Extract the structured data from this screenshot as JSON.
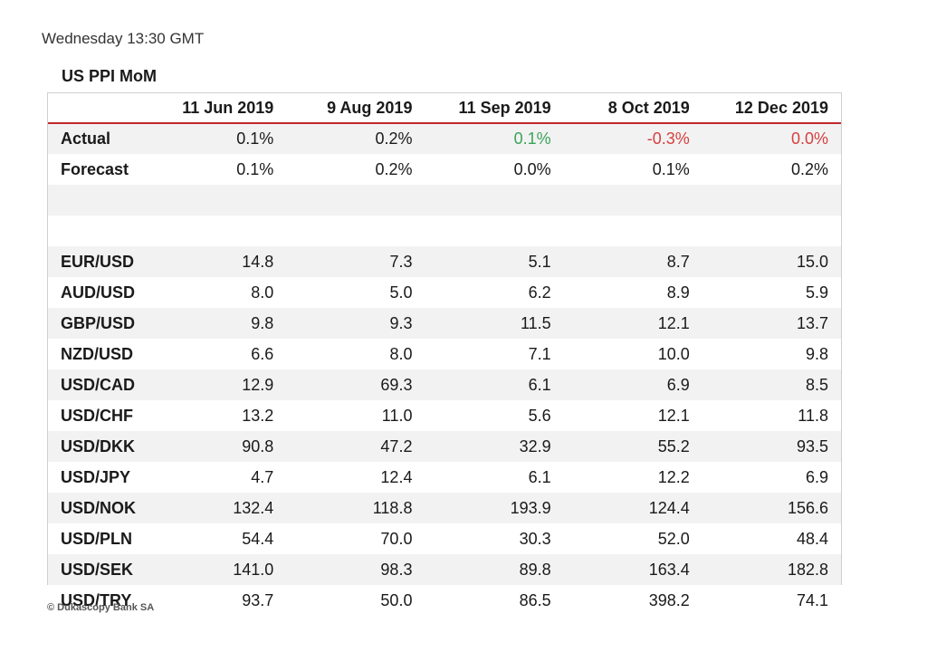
{
  "timestamp": "Wednesday 13:30 GMT",
  "table_title": "US PPI MoM",
  "columns": [
    "11 Jun 2019",
    "9 Aug 2019",
    "11 Sep 2019",
    "8 Oct 2019",
    "12 Dec 2019"
  ],
  "rows": [
    {
      "label": "Actual",
      "values": [
        "0.1%",
        "0.2%",
        "0.1%",
        "-0.3%",
        "0.0%"
      ],
      "colors": [
        "",
        "",
        "pos",
        "neg",
        "neg"
      ]
    },
    {
      "label": "Forecast",
      "values": [
        "0.1%",
        "0.2%",
        "0.0%",
        "0.1%",
        "0.2%"
      ]
    },
    {
      "label": "",
      "values": [
        "",
        "",
        "",
        "",
        ""
      ]
    },
    {
      "label": "",
      "values": [
        "",
        "",
        "",
        "",
        ""
      ]
    },
    {
      "label": "EUR/USD",
      "values": [
        "14.8",
        "7.3",
        "5.1",
        "8.7",
        "15.0"
      ]
    },
    {
      "label": "AUD/USD",
      "values": [
        "8.0",
        "5.0",
        "6.2",
        "8.9",
        "5.9"
      ]
    },
    {
      "label": "GBP/USD",
      "values": [
        "9.8",
        "9.3",
        "11.5",
        "12.1",
        "13.7"
      ]
    },
    {
      "label": "NZD/USD",
      "values": [
        "6.6",
        "8.0",
        "7.1",
        "10.0",
        "9.8"
      ]
    },
    {
      "label": "USD/CAD",
      "values": [
        "12.9",
        "69.3",
        "6.1",
        "6.9",
        "8.5"
      ]
    },
    {
      "label": "USD/CHF",
      "values": [
        "13.2",
        "11.0",
        "5.6",
        "12.1",
        "11.8"
      ]
    },
    {
      "label": "USD/DKK",
      "values": [
        "90.8",
        "47.2",
        "32.9",
        "55.2",
        "93.5"
      ]
    },
    {
      "label": "USD/JPY",
      "values": [
        "4.7",
        "12.4",
        "6.1",
        "12.2",
        "6.9"
      ]
    },
    {
      "label": "USD/NOK",
      "values": [
        "132.4",
        "118.8",
        "193.9",
        "124.4",
        "156.6"
      ]
    },
    {
      "label": "USD/PLN",
      "values": [
        "54.4",
        "70.0",
        "30.3",
        "52.0",
        "48.4"
      ]
    },
    {
      "label": "USD/SEK",
      "values": [
        "141.0",
        "98.3",
        "89.8",
        "163.4",
        "182.8"
      ]
    },
    {
      "label": "USD/TRY",
      "values": [
        "93.7",
        "50.0",
        "86.5",
        "398.2",
        "74.1"
      ]
    }
  ],
  "colors": {
    "positive": "#3aa55a",
    "negative": "#d64040",
    "header_rule": "#c0282d"
  },
  "copyright": "© Dukascopy Bank SA"
}
